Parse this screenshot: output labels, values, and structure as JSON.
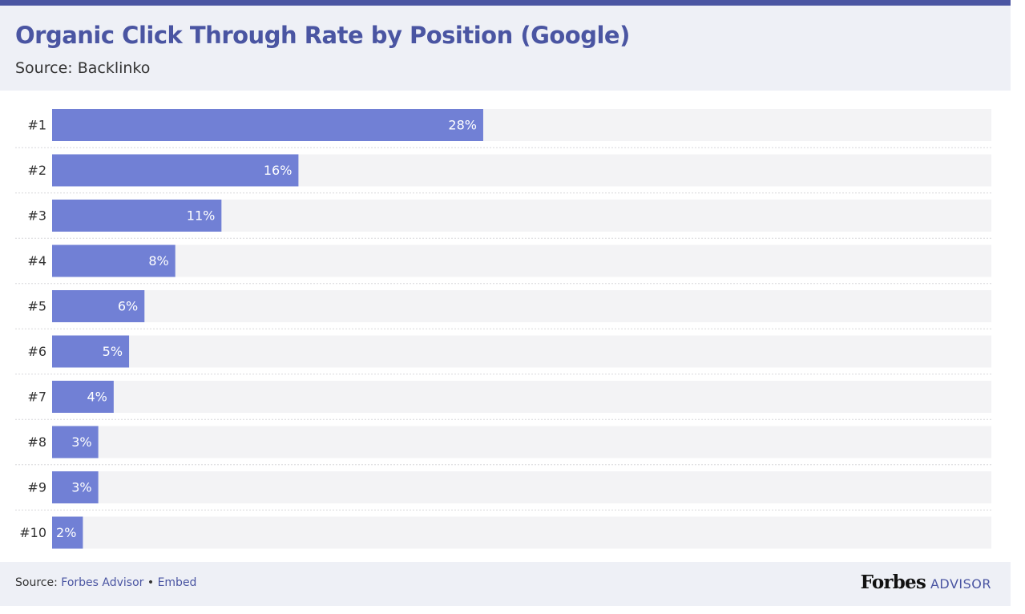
{
  "header": {
    "title": "Organic Click Through Rate by Position (Google)",
    "subtitle": "Source: Backlinko"
  },
  "footer": {
    "source_prefix": "Source:",
    "source_link": "Forbes Advisor",
    "separator": "•",
    "embed_link": "Embed",
    "brand_name": "Forbes",
    "brand_suffix": "ADVISOR"
  },
  "colors": {
    "accent": "#4a55a2",
    "bar": "#7180d5",
    "row_background": "#f3f3f5",
    "header_background": "#eef0f6"
  },
  "chart_data": {
    "type": "bar",
    "orientation": "horizontal",
    "title": "Organic Click Through Rate by Position (Google)",
    "subtitle": "Source: Backlinko",
    "categories": [
      "#1",
      "#2",
      "#3",
      "#4",
      "#5",
      "#6",
      "#7",
      "#8",
      "#9",
      "#10"
    ],
    "values": [
      28,
      16,
      11,
      8,
      6,
      5,
      4,
      3,
      3,
      2
    ],
    "value_labels": [
      "28%",
      "16%",
      "11%",
      "8%",
      "6%",
      "5%",
      "4%",
      "3%",
      "3%",
      "2%"
    ],
    "xlim": [
      0,
      61
    ],
    "grid": false,
    "legend": "none"
  }
}
